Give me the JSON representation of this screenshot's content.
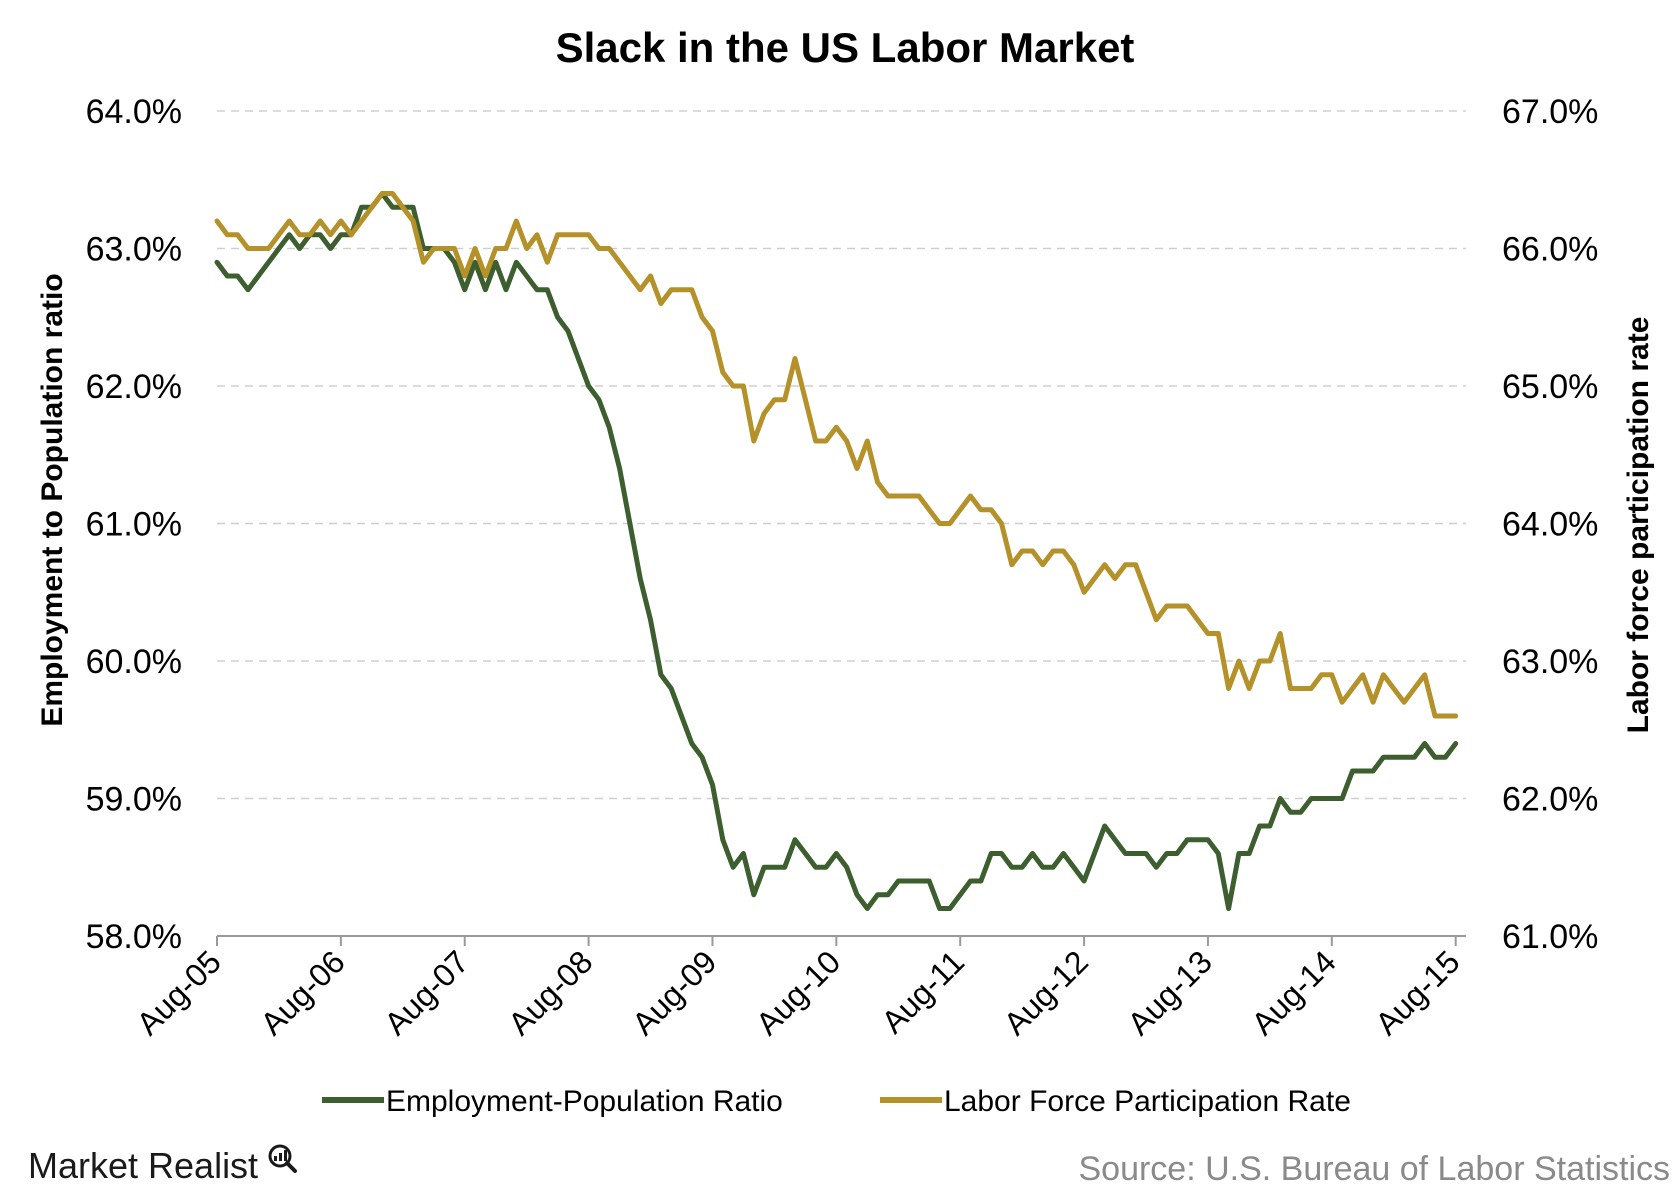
{
  "chart_data": {
    "type": "line",
    "title": "Slack in the US Labor Market",
    "ylabel": "Employment to Population ratio",
    "y2label": "Labor force participation rate",
    "ylim": [
      58.0,
      64.0
    ],
    "y2lim": [
      61.0,
      67.0
    ],
    "yticks": [
      "58.0%",
      "59.0%",
      "60.0%",
      "61.0%",
      "62.0%",
      "63.0%",
      "64.0%"
    ],
    "y2ticks": [
      "61.0%",
      "62.0%",
      "63.0%",
      "64.0%",
      "65.0%",
      "66.0%",
      "67.0%"
    ],
    "xticks": [
      "Aug-05",
      "Aug-06",
      "Aug-07",
      "Aug-08",
      "Aug-09",
      "Aug-10",
      "Aug-11",
      "Aug-12",
      "Aug-13",
      "Aug-14",
      "Aug-15"
    ],
    "xlim": [
      0,
      121
    ],
    "grid": true,
    "legend_position": "bottom",
    "series": [
      {
        "name": "Employment-Population Ratio",
        "axis": "left",
        "color": "#3d5e2f",
        "values": [
          62.9,
          62.8,
          62.8,
          62.7,
          62.8,
          62.9,
          63.0,
          63.1,
          63.0,
          63.1,
          63.1,
          63.0,
          63.1,
          63.1,
          63.3,
          63.3,
          63.4,
          63.3,
          63.3,
          63.3,
          63.0,
          63.0,
          63.0,
          62.9,
          62.7,
          62.9,
          62.7,
          62.9,
          62.7,
          62.9,
          62.8,
          62.7,
          62.7,
          62.5,
          62.4,
          62.2,
          62.0,
          61.9,
          61.7,
          61.4,
          61.0,
          60.6,
          60.3,
          59.9,
          59.8,
          59.6,
          59.4,
          59.3,
          59.1,
          58.7,
          58.5,
          58.6,
          58.3,
          58.5,
          58.5,
          58.5,
          58.7,
          58.6,
          58.5,
          58.5,
          58.6,
          58.5,
          58.3,
          58.2,
          58.3,
          58.3,
          58.4,
          58.4,
          58.4,
          58.4,
          58.2,
          58.2,
          58.3,
          58.4,
          58.4,
          58.6,
          58.6,
          58.5,
          58.5,
          58.6,
          58.5,
          58.5,
          58.6,
          58.5,
          58.4,
          58.6,
          58.8,
          58.7,
          58.6,
          58.6,
          58.6,
          58.5,
          58.6,
          58.6,
          58.7,
          58.7,
          58.7,
          58.6,
          58.2,
          58.6,
          58.6,
          58.8,
          58.8,
          59.0,
          58.9,
          58.9,
          59.0,
          59.0,
          59.0,
          59.0,
          59.2,
          59.2,
          59.2,
          59.3,
          59.3,
          59.3,
          59.3,
          59.4,
          59.3,
          59.3,
          59.4
        ]
      },
      {
        "name": "Labor Force Participation Rate",
        "axis": "right",
        "color": "#b5912a",
        "values": [
          66.2,
          66.1,
          66.1,
          66.0,
          66.0,
          66.0,
          66.1,
          66.2,
          66.1,
          66.1,
          66.2,
          66.1,
          66.2,
          66.1,
          66.2,
          66.3,
          66.4,
          66.4,
          66.3,
          66.2,
          65.9,
          66.0,
          66.0,
          66.0,
          65.8,
          66.0,
          65.8,
          66.0,
          66.0,
          66.2,
          66.0,
          66.1,
          65.9,
          66.1,
          66.1,
          66.1,
          66.1,
          66.0,
          66.0,
          65.9,
          65.8,
          65.7,
          65.8,
          65.6,
          65.7,
          65.7,
          65.7,
          65.5,
          65.4,
          65.1,
          65.0,
          65.0,
          64.6,
          64.8,
          64.9,
          64.9,
          65.2,
          64.9,
          64.6,
          64.6,
          64.7,
          64.6,
          64.4,
          64.6,
          64.3,
          64.2,
          64.2,
          64.2,
          64.2,
          64.1,
          64.0,
          64.0,
          64.1,
          64.2,
          64.1,
          64.1,
          64.0,
          63.7,
          63.8,
          63.8,
          63.7,
          63.8,
          63.8,
          63.7,
          63.5,
          63.6,
          63.7,
          63.6,
          63.7,
          63.7,
          63.5,
          63.3,
          63.4,
          63.4,
          63.4,
          63.3,
          63.2,
          63.2,
          62.8,
          63.0,
          62.8,
          63.0,
          63.0,
          63.2,
          62.8,
          62.8,
          62.8,
          62.9,
          62.9,
          62.7,
          62.8,
          62.9,
          62.7,
          62.9,
          62.8,
          62.7,
          62.8,
          62.9,
          62.6,
          62.6,
          62.6
        ]
      }
    ]
  },
  "footer": {
    "brand": "Market Realist",
    "source": "Source: U.S. Bureau of Labor Statistics"
  }
}
